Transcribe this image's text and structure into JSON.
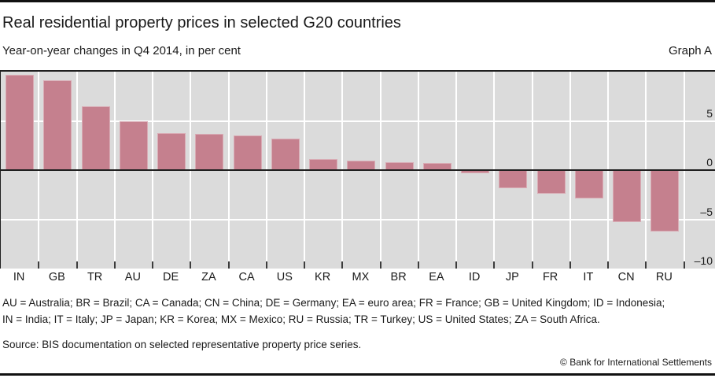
{
  "header": {
    "title": "Real residential property prices in selected G20 countries",
    "subtitle": "Year-on-year changes in Q4 2014, in per cent",
    "graph_label": "Graph A"
  },
  "chart_data": {
    "type": "bar",
    "title": "Real residential property prices in selected G20 countries",
    "subtitle": "Year-on-year changes in Q4 2014, in per cent",
    "categories": [
      "IN",
      "GB",
      "TR",
      "AU",
      "DE",
      "ZA",
      "CA",
      "US",
      "KR",
      "MX",
      "BR",
      "EA",
      "ID",
      "JP",
      "FR",
      "IT",
      "CN",
      "RU"
    ],
    "values": [
      9.7,
      9.1,
      6.5,
      5.0,
      3.8,
      3.7,
      3.5,
      3.2,
      1.1,
      1.0,
      0.8,
      0.7,
      -0.3,
      -1.8,
      -2.4,
      -2.9,
      -5.3,
      -6.2
    ],
    "xlabel": "",
    "ylabel": "",
    "ylim": [
      -10,
      10
    ],
    "yticks": [
      5,
      0,
      -5,
      -10
    ],
    "ytick_labels": [
      "5",
      "0",
      "–5",
      "–10"
    ],
    "grid": true,
    "legend": "none",
    "colors": {
      "bar": "#c5808e",
      "plot_background": "#dbdbdb",
      "gridline": "#ffffff",
      "zero_line": "#1f1f1f",
      "tick": "#3c3c3c"
    }
  },
  "footnotes": {
    "line1": "AU = Australia; BR = Brazil; CA = Canada; CN = China; DE = Germany; EA = euro area; FR = France; GB = United Kingdom; ID = Indonesia;",
    "line2": "IN = India; IT = Italy; JP = Japan; KR = Korea; MX = Mexico; RU = Russia; TR = Turkey; US = United States; ZA = South Africa."
  },
  "source": "Source: BIS documentation on selected representative property price series.",
  "copyright": "© Bank for International Settlements"
}
